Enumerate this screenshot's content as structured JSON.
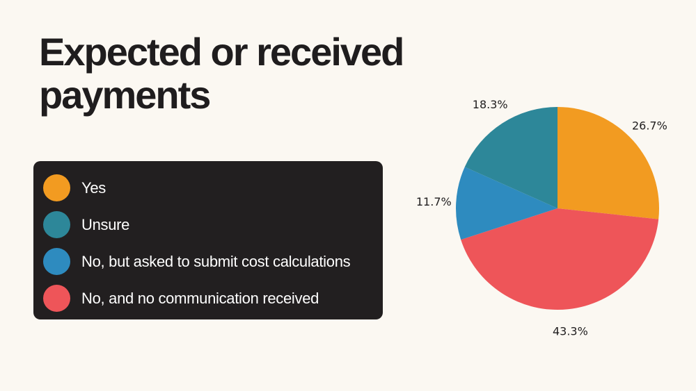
{
  "title": "Expected or received payments",
  "colors": {
    "background": "#fbf8f2",
    "legend_background": "#221f20",
    "yes": "#f29b21",
    "unsure": "#2d8799",
    "no_asked": "#2e8bbf",
    "no_communication": "#ee5559"
  },
  "chart_data": {
    "type": "pie",
    "title": "Expected or received payments",
    "legend_placement": "left",
    "slices": [
      {
        "label": "Yes",
        "value": 26.7,
        "display": "26.7%",
        "color": "#f29b21"
      },
      {
        "label": "No, and no communication received",
        "value": 43.3,
        "display": "43.3%",
        "color": "#ee5559"
      },
      {
        "label": "No, but asked to submit cost calculations",
        "value": 11.7,
        "display": "11.7%",
        "color": "#2e8bbf"
      },
      {
        "label": "Unsure",
        "value": 18.3,
        "display": "18.3%",
        "color": "#2d8799"
      }
    ]
  },
  "legend": {
    "items": [
      {
        "label": "Yes",
        "color": "#f29b21"
      },
      {
        "label": "Unsure",
        "color": "#2d8799"
      },
      {
        "label": "No, but asked to submit cost calculations",
        "color": "#2e8bbf"
      },
      {
        "label": "No, and no communication received",
        "color": "#ee5559"
      }
    ]
  }
}
